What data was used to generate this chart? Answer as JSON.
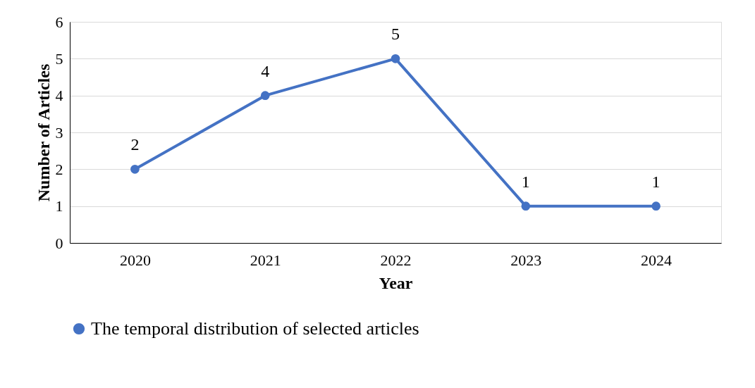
{
  "chart_data": {
    "type": "line",
    "xlabel": "Year",
    "ylabel": "Number of Articles",
    "categories": [
      "2020",
      "2021",
      "2022",
      "2023",
      "2024"
    ],
    "series": [
      {
        "name": "The temporal distribution of selected articles",
        "color": "#4472c4",
        "values": [
          2,
          4,
          5,
          1,
          1
        ]
      }
    ],
    "ylim": [
      0,
      6
    ],
    "yticks": [
      0,
      1,
      2,
      3,
      4,
      5,
      6
    ],
    "grid": "y",
    "legend": "bottom",
    "marker": "circle",
    "line_style": "solid",
    "data_labels": true
  }
}
